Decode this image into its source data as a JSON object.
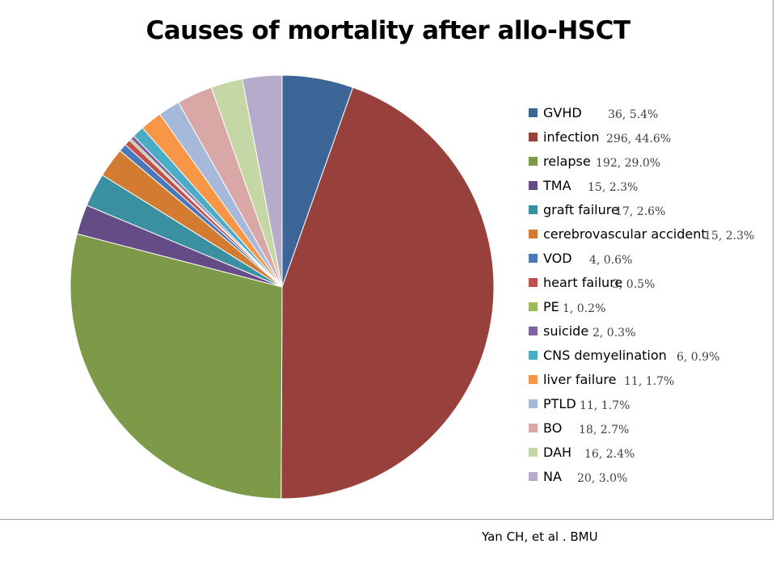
{
  "chart_data": {
    "type": "pie",
    "title": "Causes of mortality after allo-HSCT",
    "legend_position": "right",
    "slices": [
      {
        "label": "GVHD",
        "count": 36,
        "percent": "5.4%",
        "value_label": "36, 5.4%",
        "color": "#3C6698"
      },
      {
        "label": "infection",
        "count": 296,
        "percent": "44.6%",
        "value_label": "296, 44.6%",
        "color": "#98403C"
      },
      {
        "label": "relapse",
        "count": 192,
        "percent": "29.0%",
        "value_label": "192, 29.0%",
        "color": "#7D9A48"
      },
      {
        "label": "TMA",
        "count": 15,
        "percent": "2.3%",
        "value_label": "15, 2.3%",
        "color": "#644D86"
      },
      {
        "label": "graft failure",
        "count": 17,
        "percent": "2.6%",
        "value_label": "17, 2.6%",
        "color": "#3A8FA0"
      },
      {
        "label": "cerebrovascular accident",
        "count": 15,
        "percent": "2.3%",
        "value_label": "15, 2.3%",
        "color": "#D27B31"
      },
      {
        "label": "VOD",
        "count": 4,
        "percent": "0.6%",
        "value_label": "4, 0.6%",
        "color": "#4A78B8"
      },
      {
        "label": "heart failure",
        "count": 3,
        "percent": "0.5%",
        "value_label": "3, 0.5%",
        "color": "#C0504D"
      },
      {
        "label": "PE",
        "count": 1,
        "percent": "0.2%",
        "value_label": "1, 0.2%",
        "color": "#9BBB59"
      },
      {
        "label": "suicide",
        "count": 2,
        "percent": "0.3%",
        "value_label": "2, 0.3%",
        "color": "#8064A2"
      },
      {
        "label": "CNS demyelination",
        "count": 6,
        "percent": "0.9%",
        "value_label": "6, 0.9%",
        "color": "#4BACC6"
      },
      {
        "label": "liver failure",
        "count": 11,
        "percent": "1.7%",
        "value_label": "11, 1.7%",
        "color": "#F79646"
      },
      {
        "label": "PTLD",
        "count": 11,
        "percent": "1.7%",
        "value_label": "11, 1.7%",
        "color": "#A7B9DB"
      },
      {
        "label": "BO",
        "count": 18,
        "percent": "2.7%",
        "value_label": "18, 2.7%",
        "color": "#D9A7A6"
      },
      {
        "label": "DAH",
        "count": 16,
        "percent": "2.4%",
        "value_label": "16, 2.4%",
        "color": "#C6D7A6"
      },
      {
        "label": "NA",
        "count": 20,
        "percent": "3.0%",
        "value_label": "20, 3.0%",
        "color": "#B7ABCC"
      }
    ]
  },
  "source": "Yan CH, et al .  BMU"
}
